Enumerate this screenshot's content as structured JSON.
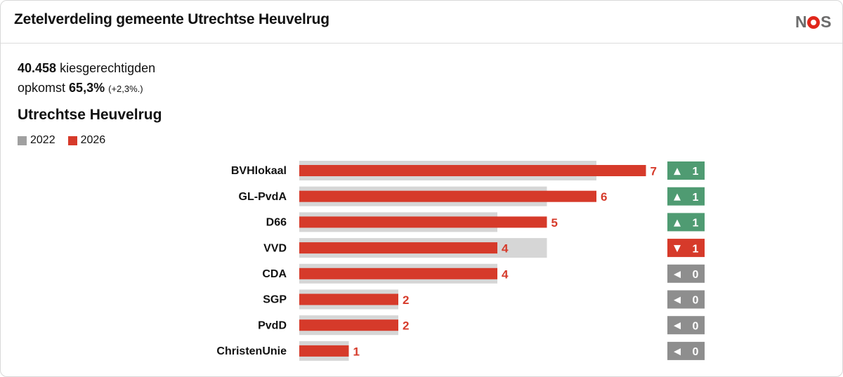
{
  "header": {
    "title": "Zetelverdeling gemeente Utrechtse Heuvelrug",
    "logo": "NOS"
  },
  "stats": {
    "voters_value": "40.458",
    "voters_label": "kiesgerechtigden",
    "turnout_label": "opkomst",
    "turnout_value": "65,3%",
    "turnout_change": "(+2,3%.)"
  },
  "colors": {
    "old": "#d6d6d6",
    "new": "#d63a2a",
    "up": "#4f9b72",
    "down": "#d63a2a",
    "same": "#8e8e8e"
  },
  "chart_data": {
    "type": "bar",
    "title": "Utrechtse Heuvelrug",
    "orientation": "horizontal",
    "legend": [
      "2022",
      "2026"
    ],
    "categories": [
      "BVHlokaal",
      "GL-PvdA",
      "D66",
      "VVD",
      "CDA",
      "SGP",
      "PvdD",
      "ChristenUnie"
    ],
    "series": [
      {
        "name": "2022",
        "values": [
          6,
          5,
          4,
          5,
          4,
          2,
          2,
          1
        ]
      },
      {
        "name": "2026",
        "values": [
          7,
          6,
          5,
          4,
          4,
          2,
          2,
          1
        ]
      }
    ],
    "changes": [
      {
        "dir": "up",
        "arrow": "▲",
        "value": "1"
      },
      {
        "dir": "up",
        "arrow": "▲",
        "value": "1"
      },
      {
        "dir": "up",
        "arrow": "▲",
        "value": "1"
      },
      {
        "dir": "down",
        "arrow": "▼",
        "value": "1"
      },
      {
        "dir": "same",
        "arrow": "◀",
        "value": "0"
      },
      {
        "dir": "same",
        "arrow": "◀",
        "value": "0"
      },
      {
        "dir": "same",
        "arrow": "◀",
        "value": "0"
      },
      {
        "dir": "same",
        "arrow": "◀",
        "value": "0"
      }
    ],
    "xlim": [
      0,
      7
    ]
  }
}
